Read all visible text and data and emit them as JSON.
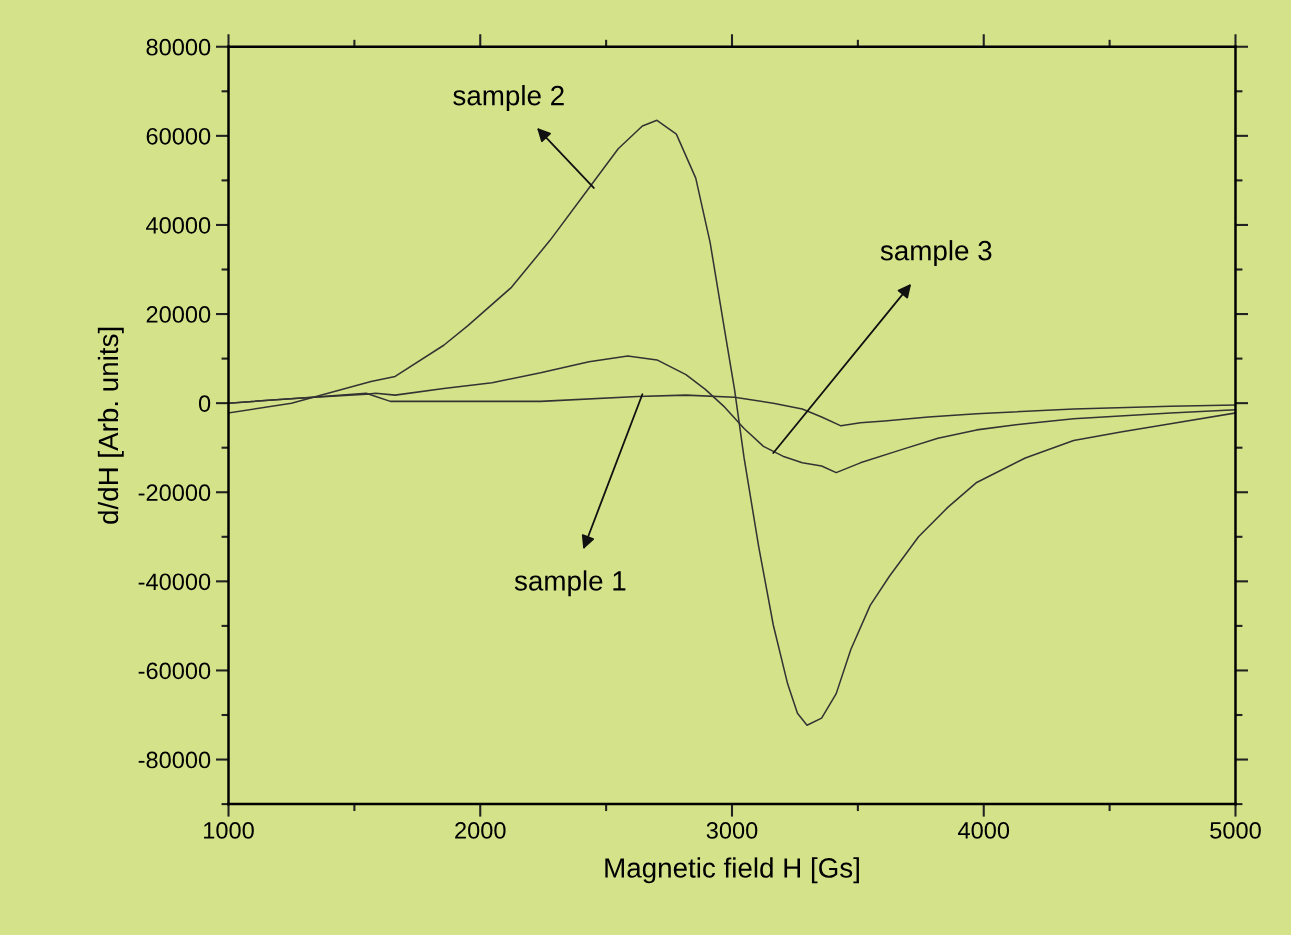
{
  "chart_data": {
    "type": "line",
    "xlabel": "Magnetic field H [Gs]",
    "ylabel": "d/dH [Arb. units]",
    "xlim": [
      1000,
      5000
    ],
    "ylim": [
      -90000,
      80000
    ],
    "xticks": [
      1000,
      2000,
      3000,
      4000,
      5000
    ],
    "yticks": [
      -80000,
      -60000,
      -40000,
      -20000,
      0,
      20000,
      40000,
      60000,
      80000
    ],
    "grid": false,
    "legend": false,
    "marker": "none",
    "line_style": "solid",
    "series": [
      {
        "color": "#333333",
        "x": [
          1000,
          1277,
          1547,
          1585,
          1643,
          1855,
          2240,
          2625,
          2817,
          3010,
          3164,
          3279,
          3356,
          3433,
          3510,
          3606,
          3780,
          3972,
          4357,
          4742,
          5000
        ],
        "values": [
          0,
          1100,
          2200,
          1500,
          400,
          400,
          400,
          1500,
          1800,
          1300,
          0,
          -1300,
          -3100,
          -5100,
          -4400,
          -4000,
          -3100,
          -2400,
          -1300,
          -700,
          -400
        ]
      },
      {
        "color": "#333333",
        "x": [
          1000,
          1250,
          1566,
          1662,
          1855,
          1951,
          2124,
          2278,
          2432,
          2548,
          2644,
          2702,
          2779,
          2856,
          2913,
          2971,
          3010,
          3048,
          3106,
          3164,
          3221,
          3260,
          3298,
          3356,
          3414,
          3472,
          3549,
          3626,
          3741,
          3857,
          3972,
          4165,
          4357,
          4550,
          4742,
          5000
        ],
        "values": [
          -2200,
          0,
          4850,
          6000,
          13000,
          17400,
          26000,
          36600,
          48300,
          57100,
          62200,
          63500,
          60400,
          50500,
          36100,
          16300,
          3100,
          -12300,
          -32200,
          -49800,
          -63000,
          -69600,
          -72300,
          -70700,
          -65200,
          -55300,
          -45400,
          -38800,
          -30000,
          -23400,
          -17800,
          -12300,
          -8400,
          -6400,
          -4600,
          -2200
        ]
      },
      {
        "color": "#333333",
        "x": [
          1000,
          1277,
          1547,
          1585,
          1662,
          1855,
          2047,
          2240,
          2432,
          2586,
          2702,
          2817,
          2894,
          2971,
          3048,
          3125,
          3202,
          3279,
          3356,
          3414,
          3510,
          3664,
          3818,
          3972,
          4165,
          4357,
          4742,
          5000
        ],
        "values": [
          0,
          1100,
          2000,
          2200,
          1800,
          3300,
          4600,
          6800,
          9300,
          10600,
          9700,
          6400,
          3100,
          -900,
          -5700,
          -9700,
          -11900,
          -13400,
          -14100,
          -15600,
          -13400,
          -10600,
          -7900,
          -6000,
          -4600,
          -3500,
          -2200,
          -1500
        ]
      }
    ],
    "annotations": [
      {
        "text": "sample 2",
        "x": 2451,
        "y": 48300
      },
      {
        "text": "sample 3",
        "x": 3164,
        "y": -11200
      },
      {
        "text": "sample 1",
        "x": 2644,
        "y": 2000
      }
    ]
  }
}
